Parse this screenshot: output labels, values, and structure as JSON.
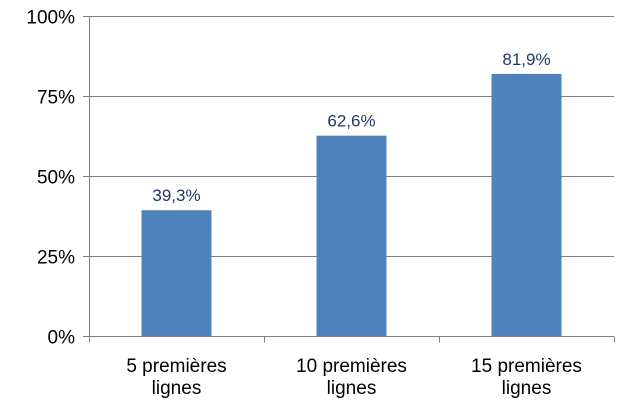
{
  "chart_data": {
    "type": "bar",
    "title": "",
    "xlabel": "",
    "ylabel": "",
    "categories": [
      [
        "5 premières",
        "lignes"
      ],
      [
        "10 premières",
        "lignes"
      ],
      [
        "15 premières",
        "lignes"
      ]
    ],
    "values": [
      39.3,
      62.6,
      81.9
    ],
    "data_labels": [
      "39,3%",
      "62,6%",
      "81,9%"
    ],
    "ylim": [
      0,
      100
    ],
    "y_ticks": [
      0,
      25,
      50,
      75,
      100
    ],
    "y_tick_labels": [
      "0%",
      "25%",
      "50%",
      "75%",
      "100%"
    ],
    "grid": true,
    "legend": "none",
    "colors": {
      "bar": "#4f81bd",
      "grid": "#7f7f7f",
      "data_label": "#1f3864"
    }
  }
}
